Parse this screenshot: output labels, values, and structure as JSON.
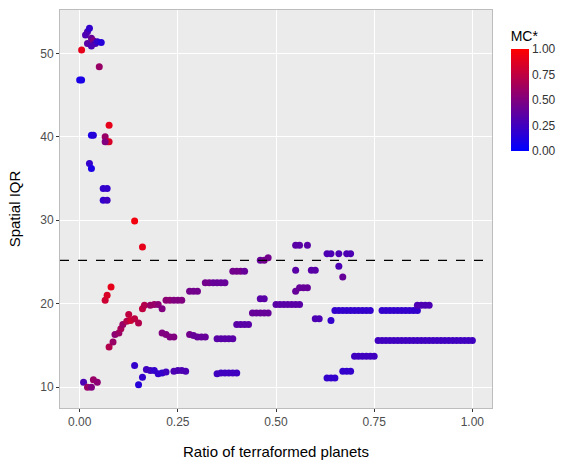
{
  "chart_data": {
    "type": "scatter",
    "x_label": "Ratio of terraformed planets",
    "y_label": "Spatial IQR",
    "grid": true,
    "marker": "circle",
    "x": [
      0.005,
      0.0,
      0.005,
      0.015,
      0.02,
      0.025,
      0.02,
      0.03,
      0.035,
      0.04,
      0.045,
      0.055,
      0.03,
      0.05,
      0.03,
      0.035,
      0.065,
      0.07,
      0.075,
      0.065,
      0.075,
      0.025,
      0.03,
      0.06,
      0.07,
      0.06,
      0.07,
      0.14,
      0.16,
      0.065,
      0.07,
      0.08,
      0.075,
      0.085,
      0.09,
      0.1,
      0.105,
      0.11,
      0.12,
      0.125,
      0.13,
      0.14,
      0.15,
      0.16,
      0.165,
      0.18,
      0.19,
      0.2,
      0.21,
      0.22,
      0.23,
      0.24,
      0.25,
      0.26,
      0.28,
      0.29,
      0.3,
      0.32,
      0.33,
      0.34,
      0.35,
      0.36,
      0.37,
      0.39,
      0.4,
      0.41,
      0.42,
      0.46,
      0.47,
      0.48,
      0.01,
      0.02,
      0.03,
      0.035,
      0.045,
      0.14,
      0.15,
      0.16,
      0.17,
      0.18,
      0.19,
      0.2,
      0.21,
      0.22,
      0.24,
      0.25,
      0.26,
      0.27,
      0.35,
      0.36,
      0.37,
      0.38,
      0.39,
      0.4,
      0.21,
      0.22,
      0.23,
      0.24,
      0.28,
      0.29,
      0.3,
      0.31,
      0.32,
      0.35,
      0.36,
      0.37,
      0.38,
      0.39,
      0.4,
      0.41,
      0.42,
      0.43,
      0.44,
      0.45,
      0.46,
      0.47,
      0.48,
      0.46,
      0.47,
      0.5,
      0.51,
      0.52,
      0.53,
      0.54,
      0.55,
      0.56,
      0.55,
      0.56,
      0.57,
      0.58,
      0.55,
      0.56,
      0.58,
      0.55,
      0.59,
      0.6,
      0.6,
      0.61,
      0.63,
      0.64,
      0.66,
      0.68,
      0.69,
      0.66,
      0.67,
      0.63,
      0.64,
      0.65,
      0.67,
      0.68,
      0.69,
      0.64,
      0.65,
      0.66,
      0.67,
      0.68,
      0.69,
      0.7,
      0.71,
      0.72,
      0.73,
      0.74,
      0.77,
      0.78,
      0.79,
      0.8,
      0.81,
      0.82,
      0.83,
      0.84,
      0.85,
      0.86,
      0.7,
      0.71,
      0.72,
      0.73,
      0.74,
      0.75,
      0.76,
      0.77,
      0.78,
      0.79,
      0.8,
      0.81,
      0.82,
      0.83,
      0.84,
      0.85,
      0.86,
      0.87,
      0.88,
      0.89,
      0.9,
      0.91,
      0.92,
      0.93,
      0.94,
      0.95,
      0.96,
      0.97,
      0.98,
      0.99,
      1.0,
      0.86,
      0.87,
      0.88,
      0.89
    ],
    "values": [
      50.4,
      46.8,
      46.8,
      52.2,
      52.6,
      53.0,
      51.2,
      51.8,
      51.5,
      51.2,
      51.4,
      51.3,
      50.9,
      48.4,
      40.2,
      40.2,
      40.0,
      39.4,
      39.4,
      39.4,
      41.4,
      36.8,
      36.2,
      33.8,
      33.8,
      32.4,
      32.4,
      29.9,
      26.8,
      20.4,
      21.0,
      22.0,
      14.8,
      15.4,
      16.3,
      16.5,
      17.0,
      17.5,
      17.9,
      18.7,
      18.0,
      18.2,
      17.7,
      19.4,
      19.8,
      19.8,
      19.9,
      19.9,
      19.4,
      20.4,
      20.4,
      20.4,
      20.4,
      20.4,
      21.5,
      21.5,
      21.5,
      22.5,
      22.5,
      22.5,
      22.5,
      22.5,
      22.5,
      23.9,
      23.9,
      23.9,
      23.9,
      25.2,
      25.2,
      25.5,
      10.6,
      10.0,
      10.0,
      10.9,
      10.6,
      12.6,
      10.3,
      11.2,
      12.1,
      12.0,
      12.0,
      11.6,
      11.7,
      11.8,
      11.9,
      12.0,
      12.0,
      11.9,
      11.6,
      11.7,
      11.7,
      11.7,
      11.7,
      11.7,
      16.5,
      16.3,
      16.0,
      16.0,
      16.3,
      16.2,
      16.0,
      16.0,
      16.0,
      15.8,
      15.8,
      15.8,
      15.8,
      15.8,
      17.5,
      17.5,
      17.5,
      17.5,
      18.9,
      18.9,
      18.9,
      18.9,
      18.9,
      20.6,
      20.6,
      19.9,
      19.9,
      19.9,
      19.9,
      19.9,
      19.9,
      19.9,
      21.5,
      21.9,
      21.9,
      21.9,
      27.0,
      27.0,
      27.0,
      24.0,
      24.0,
      24.0,
      18.2,
      18.2,
      26.0,
      26.0,
      26.0,
      26.0,
      26.0,
      24.5,
      23.2,
      11.1,
      11.1,
      11.1,
      11.9,
      11.9,
      11.9,
      18.0,
      19.2,
      19.2,
      19.2,
      19.2,
      19.2,
      19.2,
      19.2,
      19.2,
      19.2,
      19.2,
      19.2,
      19.2,
      19.2,
      19.2,
      19.2,
      19.2,
      19.2,
      19.2,
      19.2,
      19.2,
      13.7,
      13.7,
      13.7,
      13.7,
      13.7,
      13.7,
      15.6,
      15.6,
      15.6,
      15.6,
      15.6,
      15.6,
      15.6,
      15.6,
      15.6,
      15.6,
      15.6,
      15.6,
      15.6,
      15.6,
      15.6,
      15.6,
      15.6,
      15.6,
      15.6,
      15.6,
      15.6,
      15.6,
      15.6,
      15.6,
      15.6,
      19.8,
      19.8,
      19.8,
      19.8
    ],
    "mc": [
      0.9,
      0.1,
      0.1,
      0.3,
      0.3,
      0.2,
      0.35,
      0.4,
      0.5,
      0.3,
      0.2,
      0.15,
      0.3,
      0.6,
      0.1,
      0.15,
      0.6,
      0.8,
      0.85,
      0.5,
      0.9,
      0.2,
      0.1,
      0.2,
      0.2,
      0.2,
      0.25,
      0.95,
      0.9,
      0.8,
      0.85,
      0.9,
      0.7,
      0.6,
      0.55,
      0.6,
      0.65,
      0.6,
      0.7,
      0.75,
      0.8,
      0.75,
      0.7,
      0.75,
      0.7,
      0.6,
      0.6,
      0.55,
      0.5,
      0.55,
      0.55,
      0.5,
      0.5,
      0.5,
      0.45,
      0.45,
      0.45,
      0.45,
      0.45,
      0.4,
      0.4,
      0.4,
      0.4,
      0.45,
      0.45,
      0.45,
      0.4,
      0.4,
      0.45,
      0.45,
      0.3,
      0.6,
      0.5,
      0.6,
      0.55,
      0.2,
      0.15,
      0.2,
      0.25,
      0.25,
      0.2,
      0.2,
      0.2,
      0.25,
      0.3,
      0.3,
      0.3,
      0.3,
      0.25,
      0.25,
      0.25,
      0.25,
      0.25,
      0.25,
      0.5,
      0.5,
      0.5,
      0.5,
      0.45,
      0.4,
      0.4,
      0.4,
      0.4,
      0.35,
      0.35,
      0.35,
      0.35,
      0.35,
      0.35,
      0.35,
      0.35,
      0.35,
      0.4,
      0.4,
      0.4,
      0.4,
      0.4,
      0.35,
      0.35,
      0.35,
      0.35,
      0.35,
      0.35,
      0.35,
      0.35,
      0.35,
      0.4,
      0.4,
      0.4,
      0.4,
      0.35,
      0.35,
      0.35,
      0.35,
      0.35,
      0.35,
      0.3,
      0.3,
      0.3,
      0.3,
      0.3,
      0.3,
      0.3,
      0.3,
      0.4,
      0.2,
      0.2,
      0.2,
      0.2,
      0.2,
      0.2,
      0.2,
      0.2,
      0.2,
      0.2,
      0.2,
      0.2,
      0.2,
      0.2,
      0.2,
      0.2,
      0.2,
      0.2,
      0.2,
      0.2,
      0.2,
      0.2,
      0.2,
      0.2,
      0.2,
      0.2,
      0.2,
      0.25,
      0.25,
      0.25,
      0.25,
      0.25,
      0.25,
      0.25,
      0.25,
      0.25,
      0.25,
      0.25,
      0.25,
      0.25,
      0.25,
      0.25,
      0.25,
      0.25,
      0.25,
      0.25,
      0.25,
      0.25,
      0.25,
      0.25,
      0.25,
      0.25,
      0.25,
      0.25,
      0.25,
      0.25,
      0.25,
      0.25,
      0.3,
      0.3,
      0.3,
      0.3
    ],
    "colorbar": {
      "title": "MC*",
      "range": [
        0,
        1
      ],
      "ticks": [
        {
          "value": 0,
          "label": "0.00"
        },
        {
          "value": 0.25,
          "label": "0.25"
        },
        {
          "value": 0.5,
          "label": "0.50"
        },
        {
          "value": 0.75,
          "label": "0.75"
        },
        {
          "value": 1,
          "label": "1.00"
        }
      ]
    },
    "hline": {
      "y": 25.2,
      "line_style": "dashed"
    },
    "xlim": [
      -0.05,
      1.05
    ],
    "xticks": [
      {
        "value": 0,
        "label": "0.00"
      },
      {
        "value": 0.25,
        "label": "0.25"
      },
      {
        "value": 0.5,
        "label": "0.50"
      },
      {
        "value": 0.75,
        "label": "0.75"
      },
      {
        "value": 1,
        "label": "1.00"
      }
    ],
    "ylim": [
      7.5,
      55.2
    ],
    "yticks": [
      10,
      20,
      30,
      40,
      50
    ]
  }
}
